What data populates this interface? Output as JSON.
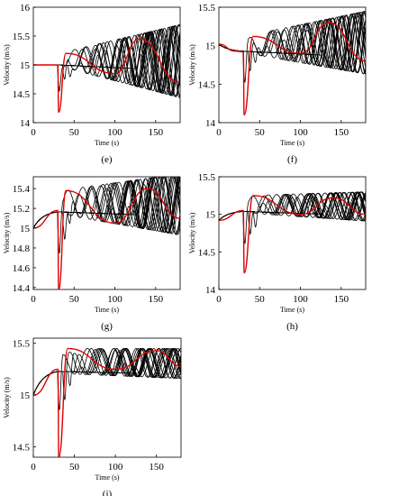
{
  "colors": {
    "ensemble": "#000000",
    "highlight": "#e00000",
    "axes": "#000000"
  },
  "chart_data": [
    {
      "type": "line",
      "panel_label": "(e)",
      "xlabel": "Time (s)",
      "ylabel": "Velocity (m/s)",
      "xlim": [
        0,
        180
      ],
      "ylim": [
        14,
        16
      ],
      "xticks": [
        0,
        50,
        100,
        150
      ],
      "yticks": [
        14,
        14.5,
        15,
        15.5,
        16
      ],
      "x_tick_labels": [
        "0",
        "50",
        "100",
        "150"
      ],
      "y_tick_labels": [
        "14",
        "14.5",
        "15",
        "15.5",
        "16"
      ],
      "grid": false,
      "initial_velocity": 15.0,
      "baseline_end": 14.9,
      "envelope_upper_end": 15.7,
      "envelope_lower_end": 14.45,
      "disturbance_time": 30,
      "highlight_dip_min": 14.18,
      "highlight_peak": 15.2,
      "series": [
        {
          "values_sample": [
            [
              0,
              15.0
            ],
            [
              30,
              15.0
            ],
            [
              31,
              14.18
            ],
            [
              40,
              15.2
            ],
            [
              100,
              14.85
            ],
            [
              130,
              15.45
            ],
            [
              180,
              14.7
            ]
          ]
        },
        {
          "values_sample": [
            [
              0,
              15.0
            ],
            [
              30,
              15.0
            ],
            [
              60,
              15.05
            ],
            [
              120,
              14.95
            ],
            [
              180,
              14.9
            ]
          ]
        }
      ]
    },
    {
      "type": "line",
      "panel_label": "(f)",
      "xlabel": "Time (s)",
      "ylabel": "Velocity (m/s)",
      "xlim": [
        0,
        180
      ],
      "ylim": [
        14,
        15.5
      ],
      "xticks": [
        0,
        50,
        100,
        150
      ],
      "yticks": [
        14,
        14.5,
        15,
        15.5
      ],
      "x_tick_labels": [
        "0",
        "50",
        "100",
        "150"
      ],
      "y_tick_labels": [
        "14",
        "14.5",
        "15",
        "15.5"
      ],
      "grid": false,
      "initial_velocity": 15.02,
      "baseline_end": 14.85,
      "envelope_upper_end": 15.45,
      "envelope_lower_end": 14.65,
      "disturbance_time": 30,
      "highlight_dip_min": 14.1,
      "highlight_peak": 15.12,
      "series": [
        {
          "values_sample": [
            [
              0,
              15.02
            ],
            [
              20,
              14.93
            ],
            [
              30,
              14.92
            ],
            [
              31,
              14.1
            ],
            [
              42,
              15.12
            ],
            [
              100,
              14.9
            ],
            [
              135,
              15.3
            ],
            [
              180,
              14.8
            ]
          ]
        },
        {
          "values_sample": [
            [
              0,
              15.02
            ],
            [
              30,
              14.92
            ],
            [
              100,
              14.88
            ],
            [
              180,
              14.85
            ]
          ]
        }
      ]
    },
    {
      "type": "line",
      "panel_label": "(g)",
      "xlabel": "Time (s)",
      "ylabel": "Velocity (m/s)",
      "xlim": [
        0,
        180
      ],
      "ylim": [
        14.38,
        15.52
      ],
      "xticks": [
        0,
        50,
        100,
        150
      ],
      "yticks": [
        14.4,
        14.6,
        14.8,
        15,
        15.2,
        15.4
      ],
      "x_tick_labels": [
        "0",
        "50",
        "100",
        "150"
      ],
      "y_tick_labels": [
        "14.4",
        "14.6",
        "14.8",
        "15",
        "15.2",
        "15.4"
      ],
      "grid": false,
      "initial_velocity": 15.0,
      "baseline_end": 15.12,
      "envelope_upper_end": 15.55,
      "envelope_lower_end": 14.95,
      "disturbance_time": 30,
      "highlight_dip_min": 14.38,
      "highlight_peak": 15.38,
      "series": [
        {
          "values_sample": [
            [
              0,
              15.0
            ],
            [
              30,
              15.18
            ],
            [
              31,
              14.38
            ],
            [
              40,
              15.38
            ],
            [
              100,
              15.05
            ],
            [
              140,
              15.4
            ],
            [
              180,
              15.1
            ]
          ]
        },
        {
          "values_sample": [
            [
              0,
              15.0
            ],
            [
              30,
              15.18
            ],
            [
              100,
              15.16
            ],
            [
              180,
              15.12
            ]
          ]
        }
      ]
    },
    {
      "type": "line",
      "panel_label": "(h)",
      "xlabel": "Time (s)",
      "ylabel": "Velocity (m/s)",
      "xlim": [
        0,
        180
      ],
      "ylim": [
        14,
        15.5
      ],
      "xticks": [
        0,
        50,
        100,
        150
      ],
      "yticks": [
        14,
        14.5,
        15,
        15.5
      ],
      "x_tick_labels": [
        "0",
        "50",
        "100",
        "150"
      ],
      "y_tick_labels": [
        "14",
        "14.5",
        "15",
        "15.5"
      ],
      "grid": false,
      "initial_velocity": 14.92,
      "baseline_end": 14.98,
      "envelope_upper_end": 15.3,
      "envelope_lower_end": 14.93,
      "disturbance_time": 30,
      "highlight_dip_min": 14.22,
      "highlight_peak": 15.25,
      "series": [
        {
          "values_sample": [
            [
              0,
              14.92
            ],
            [
              30,
              15.05
            ],
            [
              31,
              14.22
            ],
            [
              42,
              15.25
            ],
            [
              100,
              15.0
            ],
            [
              140,
              15.22
            ],
            [
              180,
              15.0
            ]
          ]
        },
        {
          "values_sample": [
            [
              0,
              14.92
            ],
            [
              30,
              15.05
            ],
            [
              100,
              15.02
            ],
            [
              180,
              14.98
            ]
          ]
        }
      ]
    },
    {
      "type": "line",
      "panel_label": "(i)",
      "xlabel": "Time (s)",
      "ylabel": "Velocity (m/s)",
      "xlim": [
        0,
        180
      ],
      "ylim": [
        14.4,
        15.55
      ],
      "xticks": [
        0,
        50,
        100,
        150
      ],
      "yticks": [
        14.5,
        15,
        15.5
      ],
      "x_tick_labels": [
        "0",
        "50",
        "100",
        "150"
      ],
      "y_tick_labels": [
        "14.5",
        "15",
        "15.5"
      ],
      "grid": false,
      "initial_velocity": 15.0,
      "baseline_end": 15.2,
      "envelope_upper_end": 15.45,
      "envelope_lower_end": 15.18,
      "disturbance_time": 30,
      "highlight_dip_min": 14.4,
      "highlight_peak": 15.45,
      "series": [
        {
          "values_sample": [
            [
              0,
              15.0
            ],
            [
              30,
              15.25
            ],
            [
              31,
              14.4
            ],
            [
              42,
              15.45
            ],
            [
              100,
              15.25
            ],
            [
              150,
              15.43
            ],
            [
              180,
              15.28
            ]
          ]
        },
        {
          "values_sample": [
            [
              0,
              15.0
            ],
            [
              30,
              15.25
            ],
            [
              100,
              15.22
            ],
            [
              180,
              15.2
            ]
          ]
        }
      ]
    }
  ]
}
